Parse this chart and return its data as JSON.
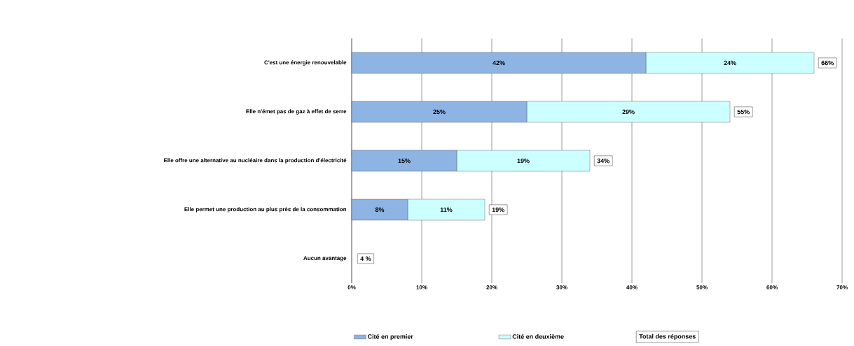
{
  "chart_data": {
    "type": "bar",
    "orientation": "horizontal",
    "stacked": true,
    "categories": [
      "C'est une énergie renouvelable",
      "Elle n'émet pas de gaz à effet de serre",
      "Elle offre une alternative au nucléaire dans la production d'électricité",
      "Elle permet une production au plus près de la consommation",
      "Aucun avantage"
    ],
    "series": [
      {
        "name": "Cité en premier",
        "color": "#8db4e2",
        "values": [
          42,
          25,
          15,
          8,
          null
        ],
        "value_labels": [
          "42%",
          "25%",
          "15%",
          "8%",
          null
        ]
      },
      {
        "name": "Cité en deuxième",
        "color": "#ccffff",
        "values": [
          24,
          29,
          19,
          11,
          null
        ],
        "value_labels": [
          "24%",
          "29%",
          "19%",
          "11%",
          null
        ]
      }
    ],
    "totals": [
      "66%",
      "55%",
      "34%",
      "19%",
      null
    ],
    "annotations": [
      "Total des réponses",
      "4 %"
    ],
    "xlim": [
      0,
      70
    ],
    "xticks": [
      {
        "value": 0,
        "label": "0%"
      },
      {
        "value": 10,
        "label": "10%"
      },
      {
        "value": 20,
        "label": "20%"
      },
      {
        "value": 30,
        "label": "30%"
      },
      {
        "value": 40,
        "label": "40%"
      },
      {
        "value": 50,
        "label": "50%"
      },
      {
        "value": 60,
        "label": "60%"
      },
      {
        "value": 70,
        "label": "70%"
      }
    ],
    "grid": "x",
    "legend": "bottom"
  }
}
